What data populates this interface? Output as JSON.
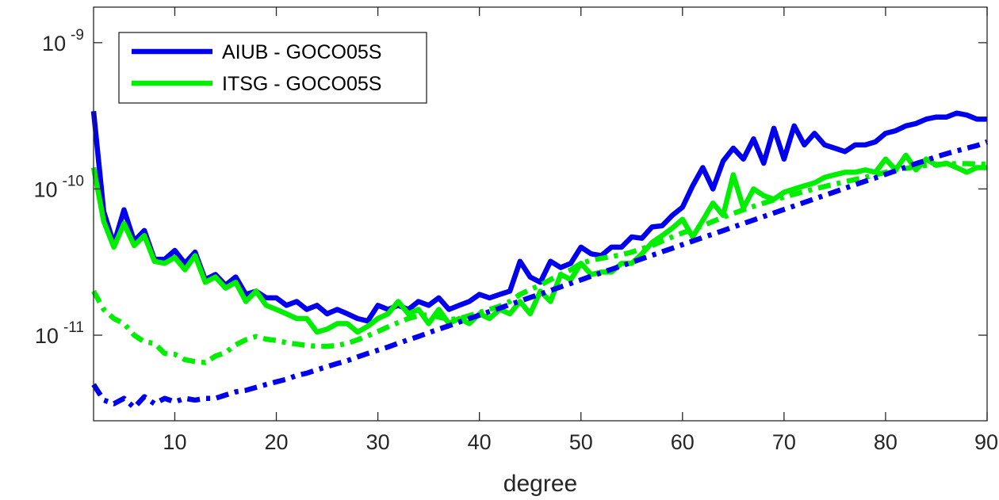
{
  "chart_data": {
    "type": "line",
    "xlabel": "degree",
    "ylabel": "",
    "xlim": [
      2,
      90
    ],
    "ylim": [
      2.6e-12,
      1.75e-09
    ],
    "y_scale": "log",
    "x_ticks": [
      10,
      20,
      30,
      40,
      50,
      60,
      70,
      80,
      90
    ],
    "x_tick_labels": [
      "10",
      "20",
      "30",
      "40",
      "50",
      "60",
      "70",
      "80",
      "90"
    ],
    "y_ticks": [
      {
        "value": 1e-11,
        "base": "10",
        "exp": "-11"
      },
      {
        "value": 1e-10,
        "base": "10",
        "exp": "-10"
      },
      {
        "value": 1e-09,
        "base": "10",
        "exp": "-9"
      }
    ],
    "grid": false,
    "legend_position": "top-left",
    "x": [
      2,
      3,
      4,
      5,
      6,
      7,
      8,
      9,
      10,
      11,
      12,
      13,
      14,
      15,
      16,
      17,
      18,
      19,
      20,
      21,
      22,
      23,
      24,
      25,
      26,
      27,
      28,
      29,
      30,
      31,
      32,
      33,
      34,
      35,
      36,
      37,
      38,
      39,
      40,
      41,
      42,
      43,
      44,
      45,
      46,
      47,
      48,
      49,
      50,
      51,
      52,
      53,
      54,
      55,
      56,
      57,
      58,
      59,
      60,
      61,
      62,
      63,
      64,
      65,
      66,
      67,
      68,
      69,
      70,
      71,
      72,
      73,
      74,
      75,
      76,
      77,
      78,
      79,
      80,
      81,
      82,
      83,
      84,
      85,
      86,
      87,
      88,
      89,
      90
    ],
    "series": [
      {
        "name": "AIUB - GOCO05S",
        "legend": true,
        "color": "#0000ee",
        "style": "solid",
        "values": [
          3.4e-10,
          7e-11,
          4.2e-11,
          7.2e-11,
          4.4e-11,
          5.2e-11,
          3.3e-11,
          3.3e-11,
          3.8e-11,
          3.1e-11,
          3.7e-11,
          2.4e-11,
          2.6e-11,
          2.2e-11,
          2.5e-11,
          1.9e-11,
          2e-11,
          1.8e-11,
          1.8e-11,
          1.6e-11,
          1.7e-11,
          1.5e-11,
          1.6e-11,
          1.4e-11,
          1.5e-11,
          1.4e-11,
          1.3e-11,
          1.25e-11,
          1.6e-11,
          1.5e-11,
          1.6e-11,
          1.5e-11,
          1.7e-11,
          1.6e-11,
          1.8e-11,
          1.5e-11,
          1.6e-11,
          1.7e-11,
          1.9e-11,
          1.8e-11,
          1.9e-11,
          2e-11,
          3.2e-11,
          2.5e-11,
          2.3e-11,
          3.2e-11,
          2.9e-11,
          3.1e-11,
          4e-11,
          3.6e-11,
          3.5e-11,
          4e-11,
          4e-11,
          4.7e-11,
          4.6e-11,
          5.5e-11,
          5.6e-11,
          6.6e-11,
          7.5e-11,
          1.05e-10,
          1.4e-10,
          1e-10,
          1.55e-10,
          1.9e-10,
          1.6e-10,
          2.2e-10,
          1.5e-10,
          2.6e-10,
          1.6e-10,
          2.7e-10,
          2e-10,
          2.4e-10,
          2e-10,
          1.9e-10,
          1.8e-10,
          2e-10,
          2e-10,
          2.1e-10,
          2.4e-10,
          2.5e-10,
          2.7e-10,
          2.8e-10,
          3e-10,
          3.1e-10,
          3.1e-10,
          3.3e-10,
          3.2e-10,
          3e-10,
          3e-10
        ]
      },
      {
        "name": "ITSG - GOCO05S",
        "legend": true,
        "color": "#00ee00",
        "style": "solid",
        "values": [
          1.4e-10,
          6e-11,
          4e-11,
          5.8e-11,
          4.1e-11,
          4.8e-11,
          3.2e-11,
          3.1e-11,
          3.4e-11,
          2.8e-11,
          3.5e-11,
          2.3e-11,
          2.5e-11,
          2.1e-11,
          2.3e-11,
          1.7e-11,
          2e-11,
          1.6e-11,
          1.5e-11,
          1.4e-11,
          1.3e-11,
          1.3e-11,
          1.05e-11,
          1.1e-11,
          1.2e-11,
          1.2e-11,
          1.05e-11,
          1.15e-11,
          1.3e-11,
          1.4e-11,
          1.7e-11,
          1.4e-11,
          1.5e-11,
          1.2e-11,
          1.5e-11,
          1.2e-11,
          1.3e-11,
          1.2e-11,
          1.4e-11,
          1.3e-11,
          1.5e-11,
          1.4e-11,
          1.7e-11,
          1.4e-11,
          2e-11,
          1.7e-11,
          2.6e-11,
          2.4e-11,
          3.1e-11,
          2.6e-11,
          2.7e-11,
          2.7e-11,
          3.1e-11,
          3.1e-11,
          3.6e-11,
          4.3e-11,
          4.8e-11,
          5.4e-11,
          6.2e-11,
          4.7e-11,
          6.1e-11,
          8e-11,
          6.6e-11,
          1.25e-10,
          7.4e-11,
          1e-10,
          9e-11,
          8.5e-11,
          9.5e-11,
          1e-10,
          1.05e-10,
          1.1e-10,
          1.2e-10,
          1.25e-10,
          1.3e-10,
          1.3e-10,
          1.35e-10,
          1.3e-10,
          1.6e-10,
          1.35e-10,
          1.7e-10,
          1.35e-10,
          1.6e-10,
          1.45e-10,
          1.5e-10,
          1.4e-10,
          1.3e-10,
          1.4e-10,
          1.4e-10
        ]
      },
      {
        "name": "",
        "legend": false,
        "color": "#00ee00",
        "style": "dashdot",
        "values": [
          2e-11,
          1.5e-11,
          1.3e-11,
          1.2e-11,
          1e-11,
          9e-12,
          8.8e-12,
          7.5e-12,
          7.4e-12,
          6.8e-12,
          6.6e-12,
          6.5e-12,
          7.2e-12,
          7.6e-12,
          8.6e-12,
          9.3e-12,
          9.8e-12,
          9.4e-12,
          9.2e-12,
          8.9e-12,
          8.7e-12,
          8.5e-12,
          8.4e-12,
          8.4e-12,
          8.5e-12,
          8.8e-12,
          9.3e-12,
          9.9e-12,
          1.06e-11,
          1.14e-11,
          1.22e-11,
          1.3e-11,
          1.36e-11,
          1.38e-11,
          1.33e-11,
          1.28e-11,
          1.3e-11,
          1.36e-11,
          1.43e-11,
          1.5e-11,
          1.58e-11,
          1.7e-11,
          1.9e-11,
          2.05e-11,
          2.2e-11,
          2.4e-11,
          2.6e-11,
          2.8e-11,
          3.1e-11,
          3.25e-11,
          3.35e-11,
          3.45e-11,
          3.55e-11,
          3.7e-11,
          3.9e-11,
          4.1e-11,
          4.4e-11,
          4.7e-11,
          5e-11,
          5.3e-11,
          5.6e-11,
          6e-11,
          6.4e-11,
          6.8e-11,
          7.2e-11,
          7.6e-11,
          8e-11,
          8.4e-11,
          8.8e-11,
          9.2e-11,
          9.6e-11,
          1e-10,
          1.04e-10,
          1.08e-10,
          1.12e-10,
          1.16e-10,
          1.2e-10,
          1.25e-10,
          1.3e-10,
          1.35e-10,
          1.38e-10,
          1.42e-10,
          1.45e-10,
          1.47e-10,
          1.48e-10,
          1.49e-10,
          1.49e-10,
          1.48e-10,
          1.48e-10
        ]
      },
      {
        "name": "",
        "legend": false,
        "color": "#0000ee",
        "style": "dashdot",
        "values": [
          4.6e-12,
          3.6e-12,
          3.4e-12,
          3.7e-12,
          3.2e-12,
          3.8e-12,
          3.4e-12,
          3.7e-12,
          3.5e-12,
          3.7e-12,
          3.6e-12,
          3.7e-12,
          3.7e-12,
          3.9e-12,
          4.1e-12,
          4.2e-12,
          4.4e-12,
          4.6e-12,
          4.8e-12,
          5e-12,
          5.3e-12,
          5.5e-12,
          5.8e-12,
          6.1e-12,
          6.4e-12,
          6.7e-12,
          7.1e-12,
          7.5e-12,
          7.9e-12,
          8.3e-12,
          8.8e-12,
          9.3e-12,
          9.8e-12,
          1.04e-11,
          1.1e-11,
          1.16e-11,
          1.23e-11,
          1.3e-11,
          1.37e-11,
          1.45e-11,
          1.53e-11,
          1.62e-11,
          1.71e-11,
          1.81e-11,
          1.91e-11,
          2.02e-11,
          2.14e-11,
          2.26e-11,
          2.39e-11,
          2.53e-11,
          2.67e-11,
          2.82e-11,
          2.98e-11,
          3.15e-11,
          3.33e-11,
          3.52e-11,
          3.72e-11,
          3.93e-11,
          4.16e-11,
          4.4e-11,
          4.65e-11,
          4.91e-11,
          5.19e-11,
          5.49e-11,
          5.8e-11,
          6.13e-11,
          6.48e-11,
          6.85e-11,
          7.24e-11,
          7.65e-11,
          8.09e-11,
          8.55e-11,
          9.04e-11,
          9.55e-11,
          1.01e-10,
          1.07e-10,
          1.13e-10,
          1.19e-10,
          1.26e-10,
          1.33e-10,
          1.41e-10,
          1.49e-10,
          1.57e-10,
          1.66e-10,
          1.74e-10,
          1.82e-10,
          1.9e-10,
          1.98e-10,
          2.1e-10
        ]
      }
    ]
  }
}
